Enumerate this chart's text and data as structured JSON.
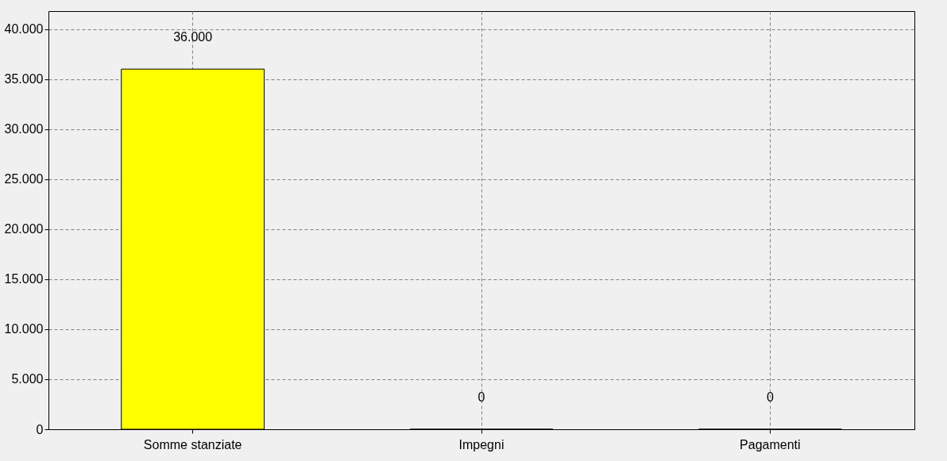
{
  "chart_data": {
    "type": "bar",
    "categories": [
      "Somme stanziate",
      "Impegni",
      "Pagamenti"
    ],
    "values": [
      36000,
      0,
      0
    ],
    "color": "#ffff00",
    "value_labels": [
      "36.000",
      "0",
      "0"
    ],
    "ylim": [
      0,
      41800
    ],
    "yticks": [
      {
        "value": 0,
        "label": "0"
      },
      {
        "value": 5000,
        "label": "5.000"
      },
      {
        "value": 10000,
        "label": "10.000"
      },
      {
        "value": 15000,
        "label": "15.000"
      },
      {
        "value": 20000,
        "label": "20.000"
      },
      {
        "value": 25000,
        "label": "25.000"
      },
      {
        "value": 30000,
        "label": "30.000"
      },
      {
        "value": 35000,
        "label": "35.000"
      },
      {
        "value": 40000,
        "label": "40.000"
      }
    ],
    "grid": true
  }
}
